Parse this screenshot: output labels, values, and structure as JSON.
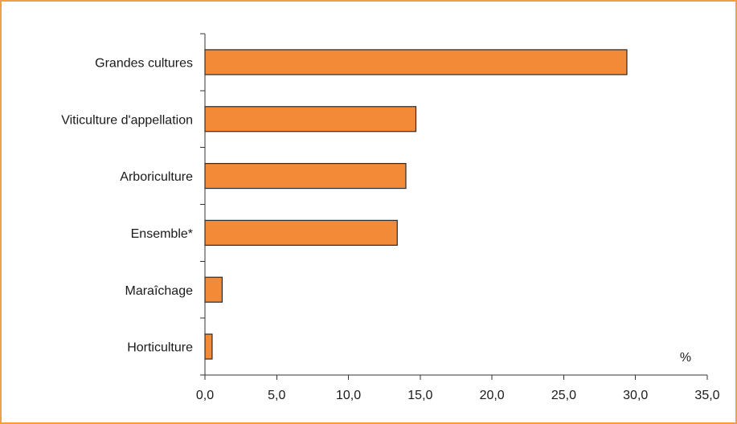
{
  "chart_data": {
    "type": "bar",
    "orientation": "horizontal",
    "categories": [
      "Grandes cultures",
      "Viticulture d'appellation",
      "Arboriculture",
      "Ensemble*",
      "Maraîchage",
      "Horticulture"
    ],
    "values": [
      29.4,
      14.7,
      14.0,
      13.4,
      1.2,
      0.5
    ],
    "xlim": [
      0,
      35
    ],
    "xticks": [
      "0,0",
      "5,0",
      "10,0",
      "15,0",
      "20,0",
      "25,0",
      "30,0",
      "35,0"
    ],
    "unit_label": "%",
    "title": "",
    "xlabel": "",
    "ylabel": "",
    "grid": false,
    "legend": "none",
    "bar_color": "#f28a38",
    "bar_edge_color": "#2a2a2a",
    "frame_color": "#f0a040"
  }
}
